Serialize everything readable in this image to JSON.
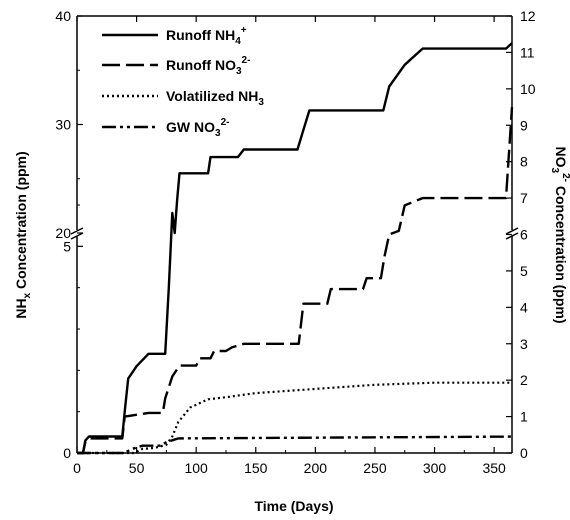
{
  "chart_data": {
    "type": "line",
    "xlabel": "Time (Days)",
    "ylabel_left": [
      "NH",
      "x",
      " Concentration (ppm)"
    ],
    "ylabel_right": [
      "NO",
      "3",
      "2-",
      " Concentration (ppm)"
    ],
    "xlim": [
      0,
      365
    ],
    "ylim_left_lower": [
      0,
      6
    ],
    "ylim_left_upper": [
      20,
      40
    ],
    "ylim_right": [
      0,
      12
    ],
    "x_ticks": [
      "0",
      "50",
      "100",
      "150",
      "200",
      "250",
      "300",
      "350"
    ],
    "y_left_ticks": [
      "0",
      "5",
      "20",
      "30",
      "40"
    ],
    "y_right_ticks": [
      "0",
      "1",
      "2",
      "3",
      "4",
      "5",
      "6",
      "7",
      "8",
      "9",
      "10",
      "11",
      "12"
    ],
    "legend_position": "top-left",
    "series": [
      {
        "name": "Runoff NH4+",
        "legend": [
          "Runoff NH",
          "4",
          "+"
        ],
        "axis": "left",
        "style": "solid",
        "points": [
          [
            0,
            0
          ],
          [
            5,
            0
          ],
          [
            7,
            0.3
          ],
          [
            10,
            0.4
          ],
          [
            38,
            0.4
          ],
          [
            40,
            1.0
          ],
          [
            43,
            1.8
          ],
          [
            50,
            2.1
          ],
          [
            60,
            2.4
          ],
          [
            74,
            2.4
          ],
          [
            77,
            4.0
          ],
          [
            80,
            10.0
          ],
          [
            82,
            20.0
          ],
          [
            84,
            23.0
          ],
          [
            86,
            25.5
          ],
          [
            110,
            25.5
          ],
          [
            112,
            27.0
          ],
          [
            135,
            27.0
          ],
          [
            140,
            27.7
          ],
          [
            185,
            27.7
          ],
          [
            190,
            29.5
          ],
          [
            195,
            31.3
          ],
          [
            257,
            31.3
          ],
          [
            262,
            33.5
          ],
          [
            275,
            35.5
          ],
          [
            290,
            37.0
          ],
          [
            360,
            37.0
          ],
          [
            365,
            37.5
          ]
        ]
      },
      {
        "name": "Runoff NO3 2-",
        "legend": [
          "Runoff NO",
          "3",
          "2-"
        ],
        "axis": "right",
        "style": "long-dash",
        "points": [
          [
            0,
            0
          ],
          [
            5,
            0
          ],
          [
            7,
            0.3
          ],
          [
            10,
            0.4
          ],
          [
            38,
            0.4
          ],
          [
            40,
            1.0
          ],
          [
            60,
            1.1
          ],
          [
            72,
            1.1
          ],
          [
            74,
            1.5
          ],
          [
            80,
            2.1
          ],
          [
            86,
            2.4
          ],
          [
            100,
            2.4
          ],
          [
            103,
            2.6
          ],
          [
            112,
            2.6
          ],
          [
            115,
            2.8
          ],
          [
            125,
            2.8
          ],
          [
            130,
            2.9
          ],
          [
            140,
            3.0
          ],
          [
            186,
            3.0
          ],
          [
            190,
            4.1
          ],
          [
            210,
            4.1
          ],
          [
            213,
            4.5
          ],
          [
            240,
            4.5
          ],
          [
            243,
            4.8
          ],
          [
            255,
            4.8
          ],
          [
            258,
            5.4
          ],
          [
            262,
            6.0
          ],
          [
            270,
            6.1
          ],
          [
            275,
            6.8
          ],
          [
            290,
            7.0
          ],
          [
            360,
            7.0
          ],
          [
            363,
            8.5
          ],
          [
            365,
            9.5
          ]
        ]
      },
      {
        "name": "Volatilized NH3",
        "legend": [
          "Volatilized NH",
          "3",
          ""
        ],
        "axis": "left",
        "style": "dotted",
        "points": [
          [
            0,
            0
          ],
          [
            48,
            0
          ],
          [
            55,
            0.1
          ],
          [
            65,
            0.12
          ],
          [
            75,
            0.2
          ],
          [
            80,
            0.4
          ],
          [
            85,
            0.75
          ],
          [
            95,
            1.1
          ],
          [
            110,
            1.3
          ],
          [
            125,
            1.35
          ],
          [
            150,
            1.45
          ],
          [
            200,
            1.55
          ],
          [
            250,
            1.65
          ],
          [
            300,
            1.7
          ],
          [
            365,
            1.7
          ]
        ]
      },
      {
        "name": "GW NO3 2-",
        "legend": [
          "GW NO",
          "3",
          "2-"
        ],
        "axis": "right",
        "style": "dash-dot-dot",
        "points": [
          [
            0,
            0
          ],
          [
            40,
            0
          ],
          [
            45,
            0.1
          ],
          [
            55,
            0.2
          ],
          [
            70,
            0.2
          ],
          [
            75,
            0.3
          ],
          [
            80,
            0.35
          ],
          [
            85,
            0.4
          ],
          [
            365,
            0.45
          ]
        ]
      }
    ]
  }
}
